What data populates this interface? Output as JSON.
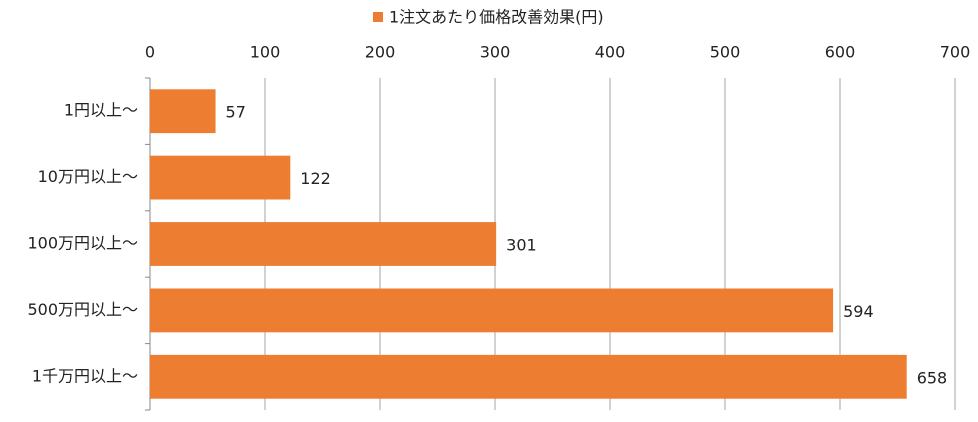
{
  "chart_data": {
    "type": "bar",
    "orientation": "horizontal",
    "categories": [
      "1円以上〜",
      "10万円以上〜",
      "100万円以上〜",
      "500万円以上〜",
      "1千万円以上〜"
    ],
    "series": [
      {
        "name": "1注文あたり価格改善効果(円)",
        "color": "#ed7d31",
        "values": [
          57,
          122,
          301,
          594,
          658
        ]
      }
    ],
    "xlim": [
      0,
      700
    ],
    "xticks": [
      0,
      100,
      200,
      300,
      400,
      500,
      600,
      700
    ],
    "grid": true,
    "legend": "top"
  }
}
